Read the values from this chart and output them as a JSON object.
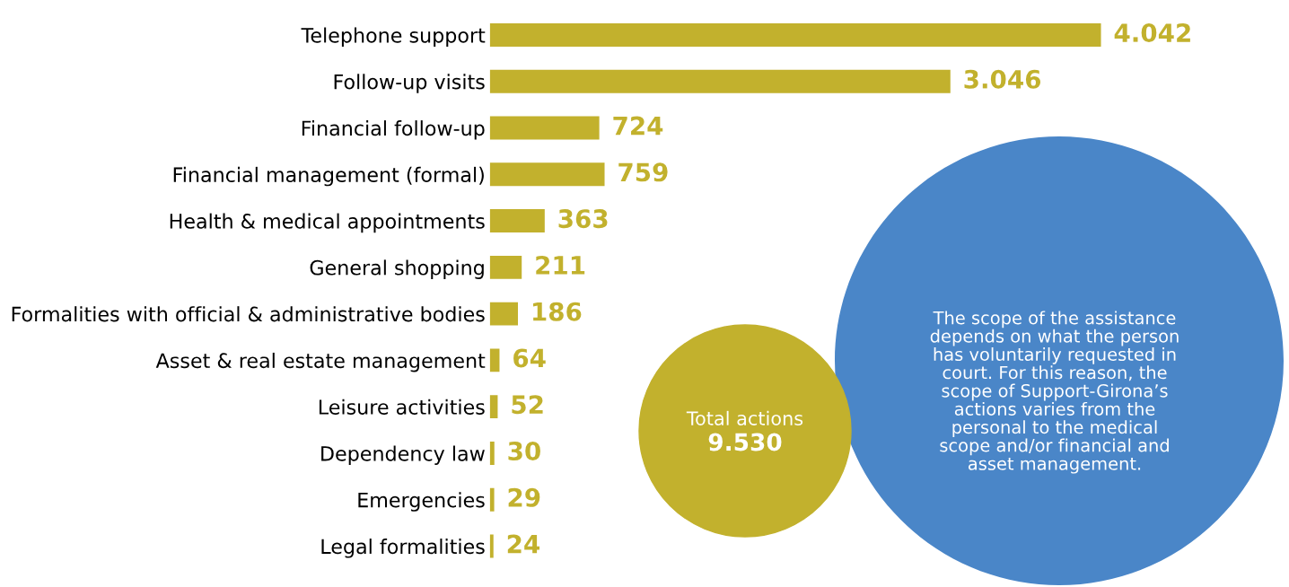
{
  "chart_data": {
    "type": "bar",
    "orientation": "horizontal",
    "categories": [
      "Telephone support",
      "Follow-up visits",
      "Financial follow-up",
      "Financial management (formal)",
      "Health & medical appointments",
      "General shopping",
      "Formalities with official & administrative bodies",
      "Asset & real estate management",
      "Leisure activities",
      "Dependency law",
      "Emergencies",
      "Legal formalities"
    ],
    "values": [
      4042,
      3046,
      724,
      759,
      363,
      211,
      186,
      64,
      52,
      30,
      29,
      24
    ],
    "value_labels": [
      "4.042",
      "3.046",
      "724",
      "759",
      "363",
      "211",
      "186",
      "64",
      "52",
      "30",
      "29",
      "24"
    ],
    "color": "#c2b12d",
    "tick_labels": "y",
    "grid": false,
    "annotations": [
      "Total actions",
      "9.530",
      "The scope of the assistance\ndepends on what the person\nhas voluntarily requested in\ncourt. For this reason, the\nscope of Support-Girona’s\nactions varies from the\npersonal to the medical\nscope and/or financial and\nasset management."
    ]
  }
}
